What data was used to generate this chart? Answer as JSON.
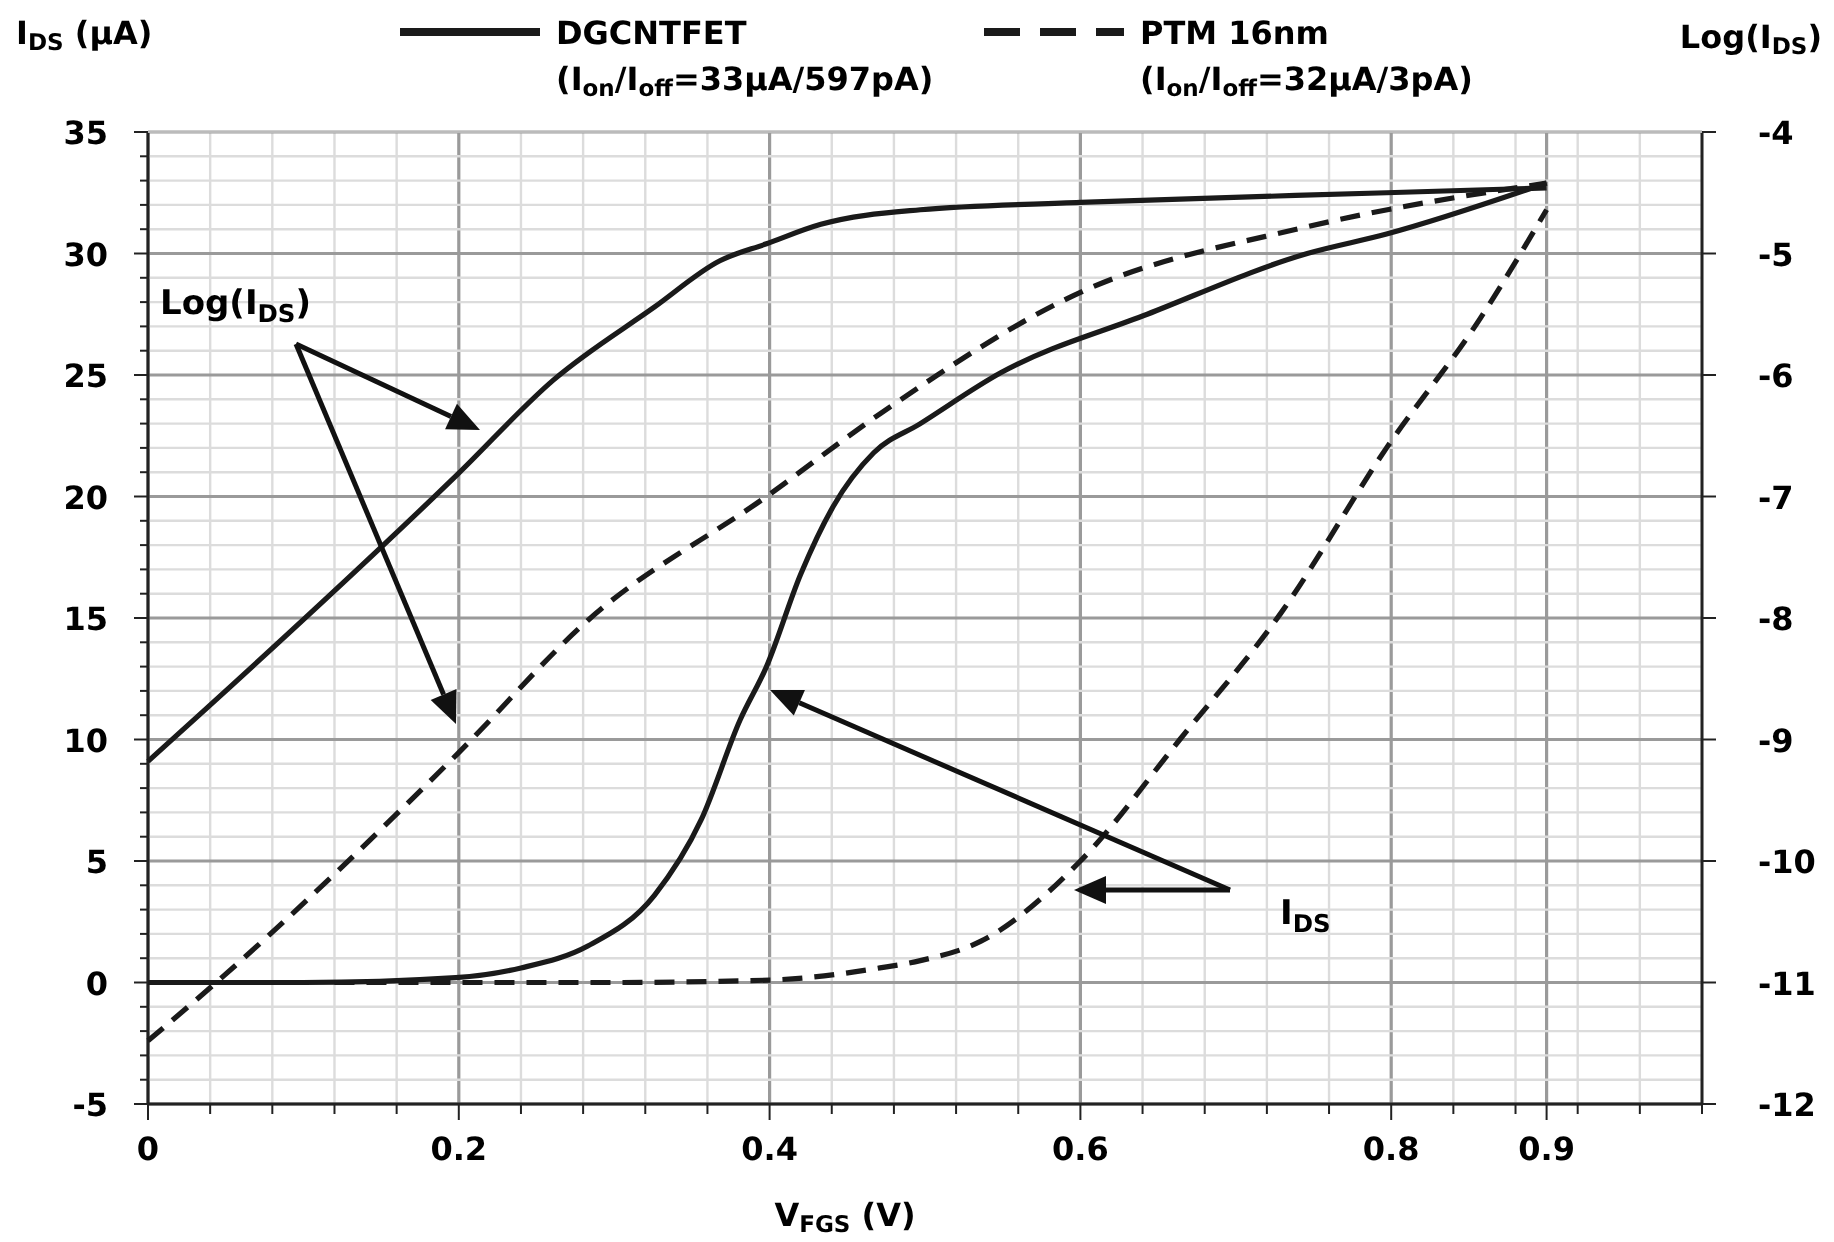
{
  "chart_data": {
    "type": "line",
    "xlabel": "V$_{FGS}$ (V)",
    "ylabel": "I$_{DS}$ (μA)",
    "y2label": "Log(I$_{DS}$)",
    "annotations": [
      "Log(I$_{DS}$)",
      "I$_{DS}$"
    ],
    "xlim": [
      0,
      1
    ],
    "ylim": [
      -5,
      35
    ],
    "y2lim": [
      -12,
      -4
    ],
    "xticks": [
      0,
      {
        "value": 0.04,
        "label": null
      },
      {
        "value": 0.08,
        "label": null
      },
      {
        "value": 0.12,
        "label": null
      },
      {
        "value": 0.16,
        "label": null
      },
      0.2,
      {
        "value": 0.24,
        "label": null
      },
      {
        "value": 0.28,
        "label": null
      },
      {
        "value": 0.32,
        "label": null
      },
      {
        "value": 0.36,
        "label": null
      },
      0.4,
      {
        "value": 0.44,
        "label": null
      },
      {
        "value": 0.48,
        "label": null
      },
      {
        "value": 0.52,
        "label": null
      },
      {
        "value": 0.56,
        "label": null
      },
      0.6,
      {
        "value": 0.64,
        "label": null
      },
      {
        "value": 0.68,
        "label": null
      },
      {
        "value": 0.72,
        "label": null
      },
      {
        "value": 0.76,
        "label": null
      },
      0.8,
      {
        "value": 0.84,
        "label": null
      },
      {
        "value": 0.88,
        "label": null
      },
      0.9,
      {
        "value": 0.92,
        "label": null
      },
      {
        "value": 0.96,
        "label": null
      },
      {
        "value": 1,
        "label": null
      }
    ],
    "yticks": [
      -5,
      {
        "value": -4,
        "label": null
      },
      {
        "value": -3,
        "label": null
      },
      {
        "value": -2,
        "label": null
      },
      {
        "value": -1,
        "label": null
      },
      0,
      {
        "value": 1,
        "label": null
      },
      {
        "value": 2,
        "label": null
      },
      {
        "value": 3,
        "label": null
      },
      {
        "value": 4,
        "label": null
      },
      5,
      {
        "value": 6,
        "label": null
      },
      {
        "value": 7,
        "label": null
      },
      {
        "value": 8,
        "label": null
      },
      {
        "value": 9,
        "label": null
      },
      10,
      {
        "value": 11,
        "label": null
      },
      {
        "value": 12,
        "label": null
      },
      {
        "value": 13,
        "label": null
      },
      {
        "value": 14,
        "label": null
      },
      15,
      {
        "value": 16,
        "label": null
      },
      {
        "value": 17,
        "label": null
      },
      {
        "value": 18,
        "label": null
      },
      {
        "value": 19,
        "label": null
      },
      20,
      {
        "value": 21,
        "label": null
      },
      {
        "value": 22,
        "label": null
      },
      {
        "value": 23,
        "label": null
      },
      {
        "value": 24,
        "label": null
      },
      25,
      {
        "value": 26,
        "label": null
      },
      {
        "value": 27,
        "label": null
      },
      {
        "value": 28,
        "label": null
      },
      {
        "value": 29,
        "label": null
      },
      30,
      {
        "value": 31,
        "label": null
      },
      {
        "value": 32,
        "label": null
      },
      {
        "value": 33,
        "label": null
      },
      {
        "value": 34,
        "label": null
      },
      35
    ],
    "y2ticks": [
      -12,
      -11,
      -10,
      -9,
      -8,
      -7,
      -6,
      -5,
      -4
    ],
    "grid": true,
    "legend": "top",
    "marker": "none",
    "series": [
      {
        "name": "DGCNTFET (I$_{on}$/I$_{off}$=33μA/597pA)",
        "color": "#1a1a1a",
        "line_style": "solid",
        "x": [
          0,
          0.1,
          0.198,
          0.24,
          0.283,
          0.326,
          0.356,
          0.381,
          0.398,
          0.42,
          0.441,
          0.467,
          0.497,
          0.549,
          0.643,
          0.746,
          0.797,
          0.9
        ],
        "values": [
          0,
          0,
          0.2,
          0.6,
          1.5,
          3.6,
          6.7,
          10.8,
          13.0,
          16.8,
          19.6,
          21.8,
          23.0,
          25.1,
          27.5,
          30.0,
          30.8,
          32.9
        ]
      },
      {
        "color": "#1a1a1a",
        "line_style": "solid",
        "axis": "y2",
        "x": [
          0,
          0.038,
          0.199,
          0.261,
          0.326,
          0.368,
          0.398,
          0.433,
          0.497,
          0.6,
          0.797,
          0.9
        ],
        "values": [
          -9.18,
          -8.74,
          -6.82,
          -6.04,
          -5.44,
          -5.06,
          -4.92,
          -4.76,
          -4.64,
          -4.58,
          -4.5,
          -4.46
        ]
      },
      {
        "name": "PTM 16nm (I$_{on}$/I$_{off}$=32μA/3pA)",
        "color": "#1a1a1a",
        "line_style": "dashed",
        "x": [
          0.12,
          0.3,
          0.4,
          0.471,
          0.497,
          0.536,
          0.6,
          0.664,
          0.729,
          0.797,
          0.857,
          0.9
        ],
        "values": [
          0,
          0,
          0.1,
          0.6,
          0.9,
          1.7,
          5.0,
          10.0,
          15.2,
          22.0,
          27.3,
          31.8
        ]
      },
      {
        "color": "#1a1a1a",
        "line_style": "dashed",
        "axis": "y2",
        "x": [
          0,
          0.043,
          0.199,
          0.283,
          0.398,
          0.471,
          0.6,
          0.746,
          0.9
        ],
        "values": [
          -11.48,
          -11.01,
          -9.12,
          -8.02,
          -7.0,
          -6.32,
          -5.32,
          -4.78,
          -4.42
        ]
      }
    ]
  }
}
